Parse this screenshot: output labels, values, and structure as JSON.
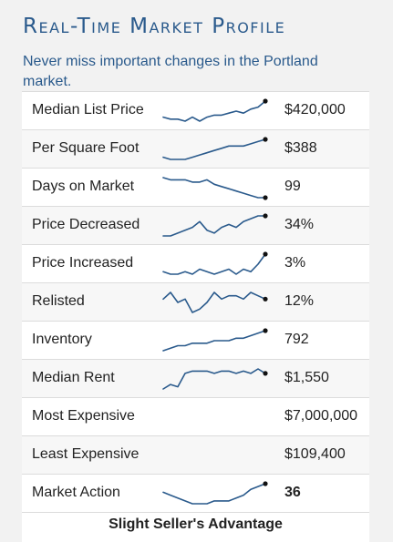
{
  "title": "Real-Time Market Profile",
  "subtitle": "Never miss important changes in the Portland market.",
  "rows": [
    {
      "label": "Median List Price",
      "value": "$420,000",
      "trend": [
        5,
        4,
        4,
        3,
        5,
        3,
        5,
        6,
        6,
        7,
        8,
        7,
        9,
        10,
        13
      ]
    },
    {
      "label": "Per Square Foot",
      "value": "$388",
      "trend": [
        2,
        1,
        1,
        1,
        2,
        3,
        4,
        5,
        6,
        7,
        7,
        7,
        8,
        9,
        10
      ]
    },
    {
      "label": "Days on Market",
      "value": "99",
      "trend": [
        10,
        9,
        9,
        9,
        8,
        8,
        9,
        7,
        6,
        5,
        4,
        3,
        2,
        1,
        1
      ]
    },
    {
      "label": "Price Decreased",
      "value": "34%",
      "trend": [
        3,
        3,
        4,
        5,
        6,
        8,
        5,
        4,
        6,
        7,
        6,
        8,
        9,
        10,
        10
      ]
    },
    {
      "label": "Price Increased",
      "value": "3%",
      "trend": [
        3,
        2,
        2,
        3,
        2,
        4,
        3,
        2,
        3,
        4,
        2,
        4,
        3,
        6,
        10
      ]
    },
    {
      "label": "Relisted",
      "value": "12%",
      "trend": [
        7,
        9,
        6,
        7,
        3,
        4,
        6,
        9,
        7,
        8,
        8,
        7,
        9,
        8,
        7
      ]
    },
    {
      "label": "Inventory",
      "value": "792",
      "trend": [
        2,
        3,
        4,
        4,
        5,
        5,
        5,
        6,
        6,
        6,
        7,
        7,
        8,
        9,
        10
      ]
    },
    {
      "label": "Median Rent",
      "value": "$1,550",
      "trend": [
        2,
        4,
        3,
        9,
        10,
        10,
        10,
        9,
        10,
        10,
        9,
        10,
        9,
        11,
        9
      ]
    },
    {
      "label": "Most Expensive",
      "value": "$7,000,000"
    },
    {
      "label": "Least Expensive",
      "value": "$109,400"
    },
    {
      "label": "Market Action",
      "value": "36",
      "bold": true,
      "trend": [
        7,
        6,
        5,
        4,
        3,
        3,
        3,
        4,
        4,
        4,
        5,
        6,
        8,
        9,
        10
      ]
    }
  ],
  "footer": "Slight Seller's Advantage",
  "colors": {
    "title": "#2a5a8c",
    "sparkline": "#2a5a8c",
    "endpoint": "#111111"
  }
}
